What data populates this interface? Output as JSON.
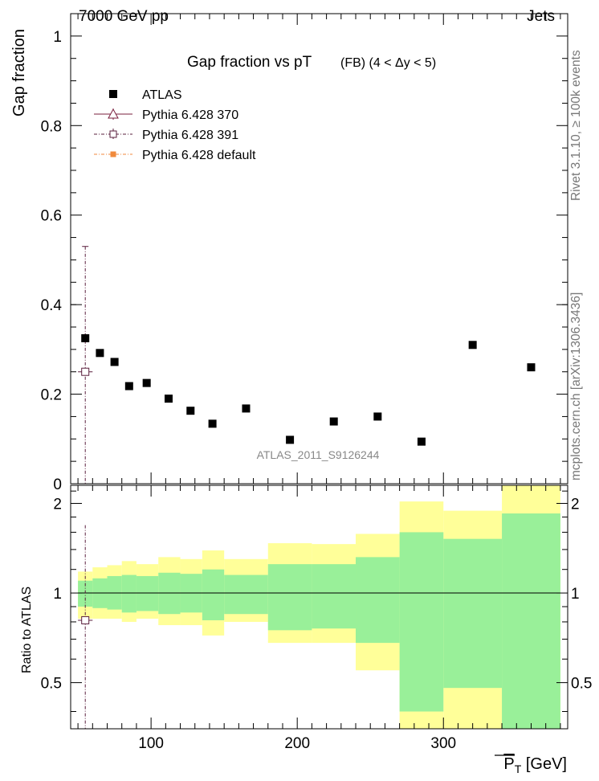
{
  "header": {
    "left": "7000 GeV pp",
    "right": "Jets"
  },
  "side_labels": {
    "rivet": "Rivet 3.1.10, ≥ 100k events",
    "mcplots": "mcplots.cern.ch [arXiv:1306.3436]"
  },
  "chart_data": [
    {
      "id": "main",
      "type": "scatter",
      "title": "Gap fraction vs pT",
      "subtitle": "(FB) (4 < Δy < 5)",
      "ylabel": "Gap fraction",
      "xlabel": "P_T [GeV]",
      "watermark": "ATLAS_2011_S9126244",
      "xlim": [
        45,
        385
      ],
      "ylim": [
        0,
        1.05
      ],
      "yticks": [
        0,
        0.2,
        0.4,
        0.6,
        0.8,
        1
      ],
      "ytick_labels": [
        "0",
        "0.2",
        "0.4",
        "0.6",
        "0.8",
        "1"
      ],
      "legend": [
        {
          "label": "ATLAS",
          "marker": "filled-square",
          "color": "#000000"
        },
        {
          "label": "Pythia 6.428 370",
          "marker": "open-triangle",
          "color": "#7a1f3d"
        },
        {
          "label": "Pythia 6.428 391",
          "marker": "open-square",
          "color": "#5a1f3d"
        },
        {
          "label": "Pythia 6.428 default",
          "marker": "filled-square",
          "color": "#f08a3c"
        }
      ],
      "series": [
        {
          "name": "ATLAS",
          "x": [
            55,
            65,
            75,
            85,
            97,
            112,
            127,
            142,
            165,
            195,
            225,
            255,
            285,
            320,
            360
          ],
          "y": [
            0.325,
            0.292,
            0.272,
            0.218,
            0.225,
            0.19,
            0.163,
            0.134,
            0.168,
            0.098,
            0.139,
            0.15,
            0.094,
            0.31,
            0.26
          ]
        },
        {
          "name": "Pythia 6.428 391",
          "x": [
            55
          ],
          "y": [
            0.25
          ],
          "yerr": [
            [
              0.27
            ],
            [
              0.28
            ]
          ],
          "xerr": [
            5
          ]
        }
      ]
    },
    {
      "id": "ratio",
      "type": "area",
      "ylabel": "Ratio to ATLAS",
      "xlim": [
        45,
        385
      ],
      "ylim": [
        0.35,
        2.3
      ],
      "yticks": [
        0.5,
        1,
        2
      ],
      "ytick_labels": [
        "0.5",
        "1",
        "2"
      ],
      "xticks": [
        100,
        200,
        300
      ],
      "xtick_labels": [
        "100",
        "200",
        "300"
      ],
      "bin_edges": [
        50,
        60,
        70,
        80,
        90,
        105,
        120,
        135,
        150,
        180,
        210,
        240,
        270,
        300,
        340,
        380
      ],
      "band_green": {
        "upper": [
          1.1,
          1.12,
          1.14,
          1.15,
          1.14,
          1.17,
          1.16,
          1.2,
          1.15,
          1.25,
          1.25,
          1.32,
          1.6,
          1.52,
          1.85
        ],
        "lower": [
          0.9,
          0.89,
          0.88,
          0.86,
          0.87,
          0.85,
          0.86,
          0.81,
          0.85,
          0.75,
          0.76,
          0.68,
          0.4,
          0.48,
          0.15
        ]
      },
      "band_yellow": {
        "upper": [
          1.18,
          1.22,
          1.24,
          1.28,
          1.25,
          1.32,
          1.3,
          1.39,
          1.3,
          1.47,
          1.46,
          1.58,
          2.03,
          1.89,
          2.3
        ],
        "lower": [
          0.82,
          0.82,
          0.82,
          0.8,
          0.82,
          0.78,
          0.78,
          0.72,
          0.8,
          0.68,
          0.68,
          0.55,
          0.2,
          0.2,
          0.2
        ]
      },
      "points": [
        {
          "name": "Pythia 6.428 391",
          "x": 55,
          "y": 0.81,
          "yerr": [
            0.81,
            0.88
          ],
          "xerr": 5
        }
      ],
      "colors": {
        "green": "#99f099",
        "yellow": "#ffff99",
        "line": "#000000",
        "mc": "#5a1f3d"
      }
    }
  ]
}
